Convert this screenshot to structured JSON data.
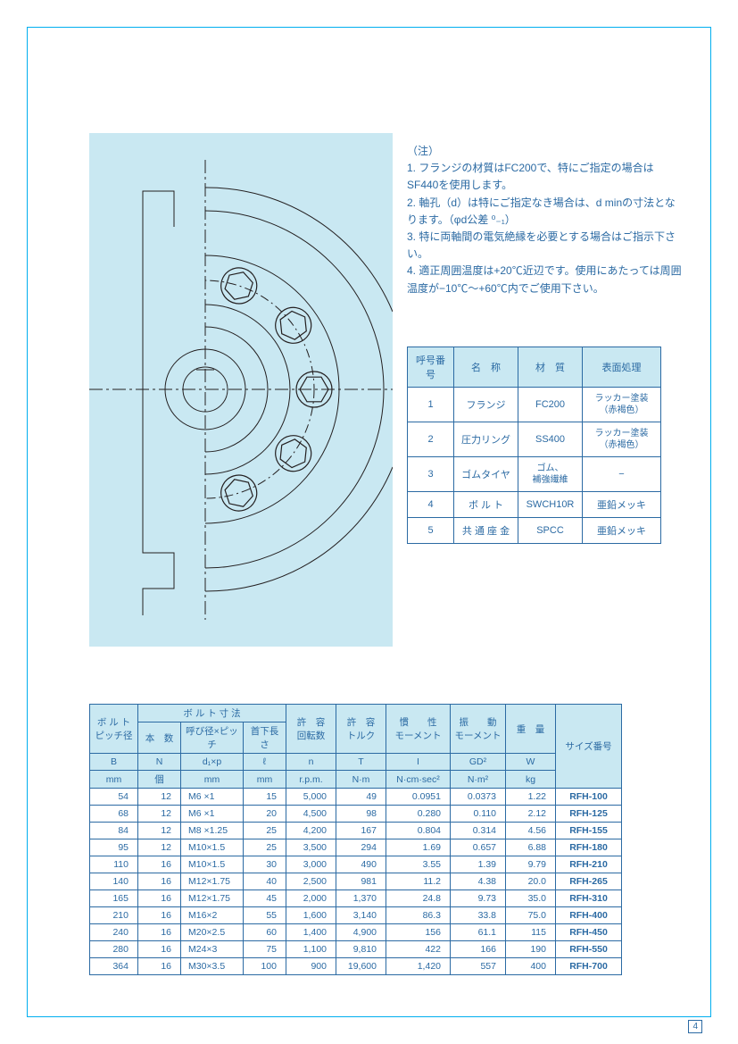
{
  "page_number": "4",
  "colors": {
    "accent": "#00aeef",
    "text_blue": "#2b6aa3",
    "panel_bg": "#c9e8f2",
    "line": "#231f20"
  },
  "notes": {
    "header": "（注）",
    "items": [
      "1. フランジの材質はFC200で、特にご指定の場合はSF440を使用します。",
      "2. 軸孔（d）は特にご指定なき場合は、d minの寸法となります。（φd公差 ⁰₋₁）",
      "3. 特に両軸間の電気絶縁を必要とする場合はご指示下さい。",
      "4. 適正周囲温度は+20℃近辺です。使用にあたっては周囲温度が−10℃〜+60℃内でご使用下さい。"
    ]
  },
  "material_table": {
    "headers": [
      "呼号番号",
      "名　称",
      "材　質",
      "表面処理"
    ],
    "rows": [
      [
        "1",
        "フランジ",
        "FC200",
        "ラッカー塗装（赤褐色）"
      ],
      [
        "2",
        "圧力リング",
        "SS400",
        "ラッカー塗装（赤褐色）"
      ],
      [
        "3",
        "ゴムタイヤ",
        "ゴム、\n補強繊維",
        "−"
      ],
      [
        "4",
        "ボ ル ト",
        "SWCH10R",
        "亜鉛メッキ"
      ],
      [
        "5",
        "共 通 座 金",
        "SPCC",
        "亜鉛メッキ"
      ]
    ]
  },
  "spec_table": {
    "group1_merge": "ボ ル ト 寸 法",
    "h1": [
      "ボ ル ト\nピッチ径",
      "本　数",
      "呼び径×ピッチ",
      "首下長さ",
      "許　容\n回転数",
      "許　容\nトルク",
      "慣　　性\nモーメント",
      "振　　動\nモーメント",
      "重　量",
      "サイズ番号"
    ],
    "h2": [
      "B",
      "N",
      "d₁×p",
      "ℓ",
      "n",
      "T",
      "I",
      "GD²",
      "W"
    ],
    "h3": [
      "mm",
      "個",
      "mm",
      "mm",
      "r.p.m.",
      "N·m",
      "N·cm·sec²",
      "N·m²",
      "kg"
    ],
    "rows": [
      [
        "54",
        "12",
        "M6 ×1",
        "15",
        "5,000",
        "49",
        "0.0951",
        "0.0373",
        "1.22",
        "RFH-100"
      ],
      [
        "68",
        "12",
        "M6 ×1",
        "20",
        "4,500",
        "98",
        "0.280",
        "0.110",
        "2.12",
        "RFH-125"
      ],
      [
        "84",
        "12",
        "M8 ×1.25",
        "25",
        "4,200",
        "167",
        "0.804",
        "0.314",
        "4.56",
        "RFH-155"
      ],
      [
        "95",
        "12",
        "M10×1.5",
        "25",
        "3,500",
        "294",
        "1.69",
        "0.657",
        "6.88",
        "RFH-180"
      ],
      [
        "110",
        "16",
        "M10×1.5",
        "30",
        "3,000",
        "490",
        "3.55",
        "1.39",
        "9.79",
        "RFH-210"
      ],
      [
        "140",
        "16",
        "M12×1.75",
        "40",
        "2,500",
        "981",
        "11.2",
        "4.38",
        "20.0",
        "RFH-265"
      ],
      [
        "165",
        "16",
        "M12×1.75",
        "45",
        "2,000",
        "1,370",
        "24.8",
        "9.73",
        "35.0",
        "RFH-310"
      ],
      [
        "210",
        "16",
        "M16×2",
        "55",
        "1,600",
        "3,140",
        "86.3",
        "33.8",
        "75.0",
        "RFH-400"
      ],
      [
        "240",
        "16",
        "M20×2.5",
        "60",
        "1,400",
        "4,900",
        "156",
        "61.1",
        "115",
        "RFH-450"
      ],
      [
        "280",
        "16",
        "M24×3",
        "75",
        "1,100",
        "9,810",
        "422",
        "166",
        "190",
        "RFH-550"
      ],
      [
        "364",
        "16",
        "M30×3.5",
        "100",
        "900",
        "19,600",
        "1,420",
        "557",
        "400",
        "RFH-700"
      ]
    ]
  },
  "diagram": {
    "desc": "half cross-section of flange coupling with bolts",
    "stroke": "#231f20",
    "bg": "#c9e8f2"
  }
}
